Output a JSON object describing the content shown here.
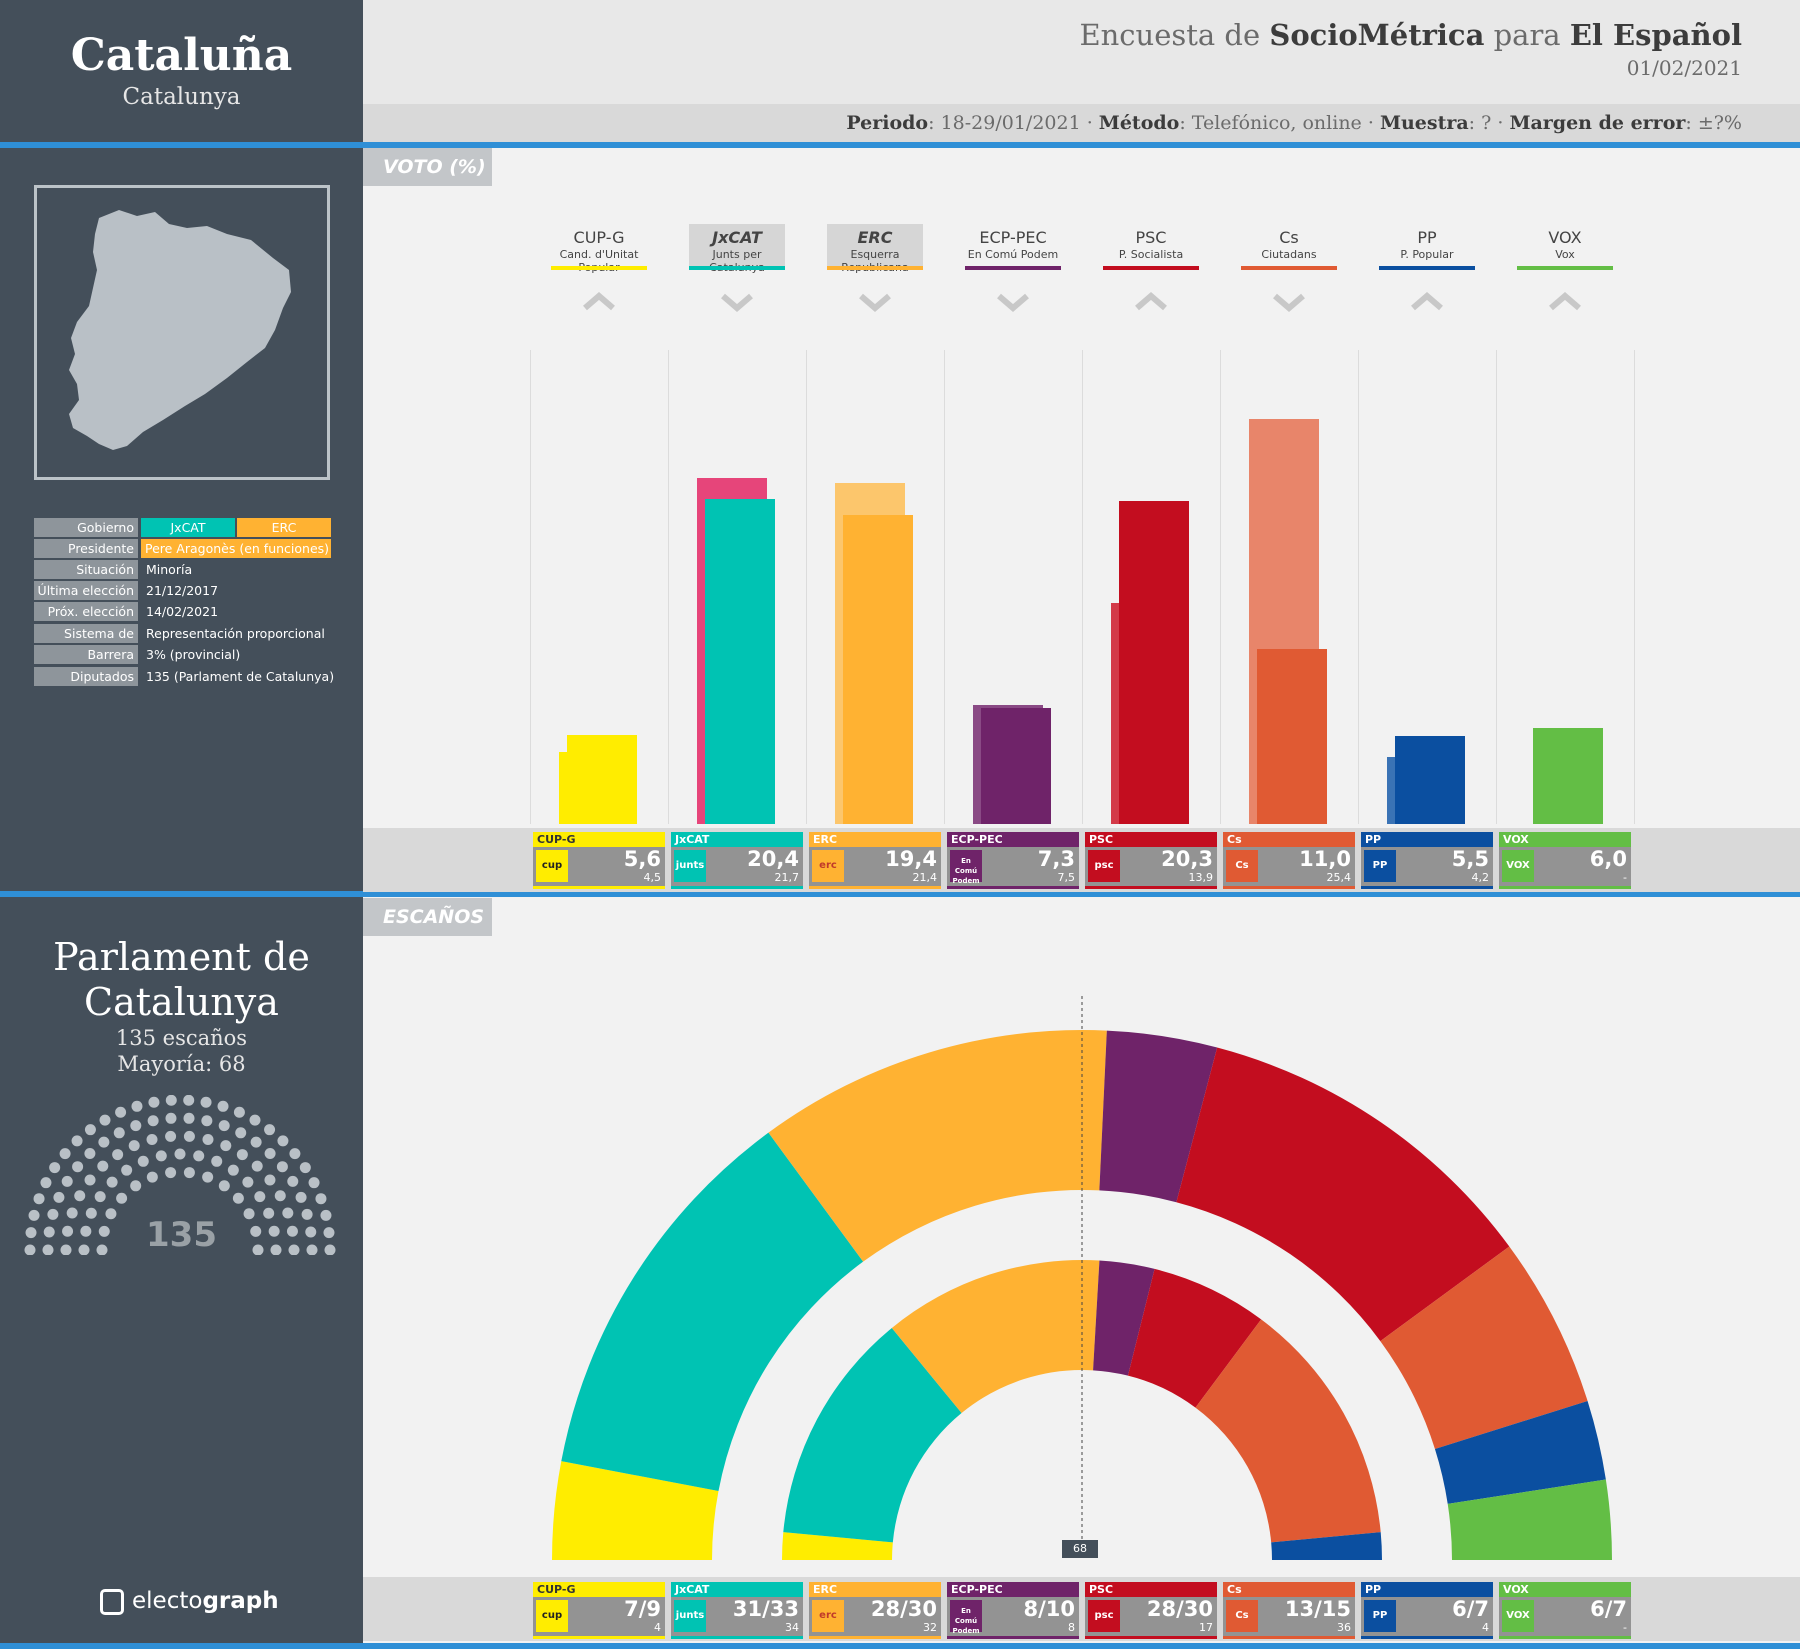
{
  "region": {
    "title": "Cataluña",
    "subtitle": "Catalunya"
  },
  "header": {
    "prefix": "Encuesta de",
    "pollster": "SocioMétrica",
    "connector": "para",
    "media": "El Español",
    "date": "01/02/2021",
    "meta": [
      {
        "k": "Periodo",
        "v": "18-29/01/2021"
      },
      {
        "k": "Método",
        "v": "Telefónico, online"
      },
      {
        "k": "Muestra",
        "v": "?"
      },
      {
        "k": "Margen de error",
        "v": "±?%"
      }
    ]
  },
  "sections": {
    "vote": "VOTO (%)",
    "seats": "ESCAÑOS"
  },
  "info": {
    "gobierno_label": "Gobierno",
    "gobierno": [
      "JxCAT",
      "ERC"
    ],
    "presidente_label": "Presidente",
    "presidente": "Pere Aragonès  (en funciones)",
    "situacion_label": "Situación",
    "situacion": "Minoría",
    "ultima_label": "Última elección",
    "ultima": "21/12/2017",
    "proxima_label": "Próx. elección",
    "proxima": "14/02/2021",
    "sistema_label": "Sistema de voto",
    "sistema": "Representación proporcional",
    "barrera_label": "Barrera",
    "barrera": "3% (provincial)",
    "diputados_label": "Diputados",
    "diputados": "135 (Parlament  de Catalunya)"
  },
  "parliament": {
    "name": "Parlament de Catalunya",
    "seats_text": "135 escaños",
    "majority_text": "Mayoría: 68",
    "total": "135",
    "majority_marker": "68"
  },
  "brand": {
    "e": "electo",
    "g": "graph"
  },
  "parties": [
    {
      "key": "CUP-G",
      "full": "Cand. d'Unitat Popular",
      "color": "#ffed00",
      "prev_color": "#ffed00",
      "logo": "cup",
      "logo_bg": "#ffed00",
      "logo_fg": "#222",
      "trend": "up",
      "highlight": false
    },
    {
      "key": "JxCAT",
      "full": "Junts per Catalunya",
      "color": "#00c3b3",
      "prev_color": "#e6457a",
      "logo": "junts",
      "logo_bg": "#00c3b3",
      "logo_fg": "#fff",
      "trend": "down",
      "highlight": true
    },
    {
      "key": "ERC",
      "full": "Esquerra Republicana",
      "color": "#ffb232",
      "prev_color": "#fcc66c",
      "logo": "erc",
      "logo_bg": "#ffb232",
      "logo_fg": "#c0392b",
      "trend": "down",
      "highlight": true
    },
    {
      "key": "ECP-PEC",
      "full": "En Comú Podem",
      "color": "#6f2369",
      "prev_color": "#8a4a85",
      "logo": "En Comú Podem",
      "logo_bg": "#6f2369",
      "logo_fg": "#fff",
      "trend": "down",
      "highlight": false
    },
    {
      "key": "PSC",
      "full": "P. Socialista",
      "color": "#c30d1f",
      "prev_color": "#d33a48",
      "logo": "psc",
      "logo_bg": "#c30d1f",
      "logo_fg": "#fff",
      "trend": "up",
      "highlight": false
    },
    {
      "key": "Cs",
      "full": "Ciutadans",
      "color": "#e05a33",
      "prev_color": "#e8856a",
      "logo": "Cs",
      "logo_bg": "#e05a33",
      "logo_fg": "#fff",
      "trend": "down",
      "highlight": false
    },
    {
      "key": "PP",
      "full": "P. Popular",
      "color": "#0b4fa0",
      "prev_color": "#3a73b5",
      "logo": "PP",
      "logo_bg": "#0b4fa0",
      "logo_fg": "#fff",
      "trend": "up",
      "highlight": false
    },
    {
      "key": "VOX",
      "full": "Vox",
      "color": "#63be45",
      "prev_color": "#63be45",
      "logo": "VOX",
      "logo_bg": "#63be45",
      "logo_fg": "#fff",
      "trend": "up",
      "highlight": false
    }
  ],
  "chart_data": [
    {
      "type": "bar",
      "title": "VOTO (%)",
      "categories": [
        "CUP-G",
        "JxCAT",
        "ERC",
        "ECP-PEC",
        "PSC",
        "Cs",
        "PP",
        "VOX"
      ],
      "series": [
        {
          "values": [
            5.6,
            20.4,
            19.4,
            7.3,
            20.3,
            11.0,
            5.5,
            6.0
          ]
        },
        {
          "values": [
            4.5,
            21.7,
            21.4,
            7.5,
            13.9,
            25.4,
            4.2,
            null
          ]
        }
      ],
      "labels": [
        "5,6",
        "20,4",
        "19,4",
        "7,3",
        "20,3",
        "11,0",
        "5,5",
        "6,0"
      ],
      "prev_labels": [
        "4,5",
        "21,7",
        "21,4",
        "7,5",
        "13,9",
        "25,4",
        "4,2",
        "-"
      ],
      "ylim": [
        0,
        27
      ]
    },
    {
      "type": "pie",
      "title": "ESCAÑOS",
      "categories": [
        "CUP-G",
        "JxCAT",
        "ERC",
        "ECP-PEC",
        "PSC",
        "Cs",
        "PP",
        "VOX"
      ],
      "series": [
        {
          "values": [
            8,
            32,
            29,
            9,
            29,
            14,
            6.5,
            6.5
          ]
        },
        {
          "values": [
            4,
            34,
            32,
            8,
            17,
            36,
            4,
            0
          ]
        }
      ],
      "labels": [
        "7/9",
        "31/33",
        "28/30",
        "8/10",
        "28/30",
        "13/15",
        "6/7",
        "6/7"
      ],
      "prev_labels": [
        "4",
        "34",
        "32",
        "8",
        "17",
        "36",
        "4",
        "-"
      ]
    }
  ]
}
